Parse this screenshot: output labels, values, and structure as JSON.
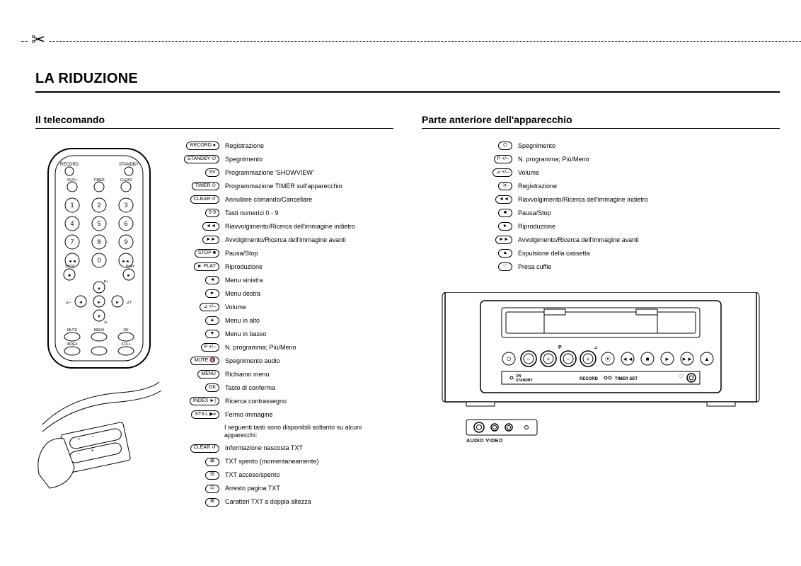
{
  "page_title": "LA RIDUZIONE",
  "left": {
    "heading": "Il telecomando",
    "items": [
      {
        "label": "RECORD",
        "glyph": "●",
        "text": "Registrazione"
      },
      {
        "label": "STANDBY",
        "glyph": "⏻",
        "text": "Spegnimento"
      },
      {
        "label": "SV",
        "glyph": "",
        "text": "Programmazione 'SHOWVIEW'"
      },
      {
        "label": "TIMER",
        "glyph": "⏲",
        "text": "Programmazione TIMER sull'apparecchio"
      },
      {
        "label": "CLEAR",
        "glyph": "↺",
        "text": "Annullare comando/Cancellare"
      },
      {
        "label": "0-9",
        "glyph": "",
        "text": "Tasti numerici 0 - 9"
      },
      {
        "label": "",
        "glyph": "◄◄",
        "text": "Riavvolgimento/Ricerca dell'immagine indietro"
      },
      {
        "label": "",
        "glyph": "►►",
        "text": "Avvolgimento/Ricerca dell'immagine avanti"
      },
      {
        "label": "STOP",
        "glyph": "■",
        "text": "Pausa/Stop"
      },
      {
        "label": "",
        "glyph": "► PLAY",
        "text": "Riproduzione"
      },
      {
        "label": "",
        "glyph": "◄",
        "text": "Menu sinistra"
      },
      {
        "label": "",
        "glyph": "►",
        "text": "Menu destra"
      },
      {
        "label": "",
        "glyph": "⊿ +/–",
        "text": "Volume"
      },
      {
        "label": "",
        "glyph": "▲",
        "text": "Menu in alto"
      },
      {
        "label": "",
        "glyph": "▼",
        "text": "Menu in basso"
      },
      {
        "label": "",
        "glyph": "P +/–",
        "text": "N. programma; Più/Meno"
      },
      {
        "label": "MUTE",
        "glyph": "🔇",
        "text": "Spegnimento audio"
      },
      {
        "label": "MENU",
        "glyph": "",
        "text": "Richiamo menu"
      },
      {
        "label": "OK",
        "glyph": "",
        "text": "Tasto di conferma"
      },
      {
        "label": "INDEX",
        "glyph": "►|",
        "text": "Ricerca contrassegno"
      },
      {
        "label": "STILL",
        "glyph": "▶⏸",
        "text": "Fermo immagine"
      },
      {
        "label": "_note",
        "glyph": "",
        "text": "I seguenti tasti sono disponibili soltanto su alcuni apparecchi:"
      },
      {
        "label": "CLEAR",
        "glyph": "↺",
        "text": "Informazione nascosta TXT"
      },
      {
        "label": "",
        "glyph": "⊠",
        "text": "TXT spento (momentaneamente)"
      },
      {
        "label": "",
        "glyph": "⊟",
        "text": "TXT acceso/spento"
      },
      {
        "label": "",
        "glyph": "⊡",
        "text": "Arresto pagina TXT"
      },
      {
        "label": "",
        "glyph": "⊞",
        "text": "Caratteri TXT a doppia altezza"
      }
    ]
  },
  "right": {
    "heading": "Parte anteriore dell'apparecchio",
    "items": [
      {
        "glyph": "⏻",
        "text": "Spegnimento"
      },
      {
        "glyph": "P +/–",
        "text": "N. programma; Più/Meno"
      },
      {
        "glyph": "⊿ +/–",
        "text": "Volume"
      },
      {
        "glyph": "⦿",
        "text": "Registrazione"
      },
      {
        "glyph": "◄◄",
        "text": "Riavvolgimento/Ricerca dell'immagine indietro"
      },
      {
        "glyph": "■",
        "text": "Pausa/Stop"
      },
      {
        "glyph": "►",
        "text": "Riproduzione"
      },
      {
        "glyph": "►►",
        "text": "Avvolgimento/Ricerca dell'immagine avanti"
      },
      {
        "glyph": "▲",
        "text": "Espulsione della cassetta"
      },
      {
        "glyph": "♡",
        "text": "Presa cuffie"
      }
    ],
    "front_panel": {
      "on_standby": "ON\nSTANDBY",
      "record": "RECORD",
      "timer_set": "TIMER SET",
      "av": "AUDIO  VIDEO",
      "p_label": "P"
    }
  },
  "remote_labels": {
    "record": "RECORD",
    "standby": "STANDBY",
    "svv": "SV/V+",
    "timer": "TIMER",
    "clear": "CLEAR",
    "stop": "STOP",
    "play": "PLAY",
    "mute": "MUTE",
    "menu": "MENU",
    "ok": "OK",
    "index": "INDEX",
    "still": "STILL",
    "pplus": "P+",
    "pminus": "P-"
  }
}
